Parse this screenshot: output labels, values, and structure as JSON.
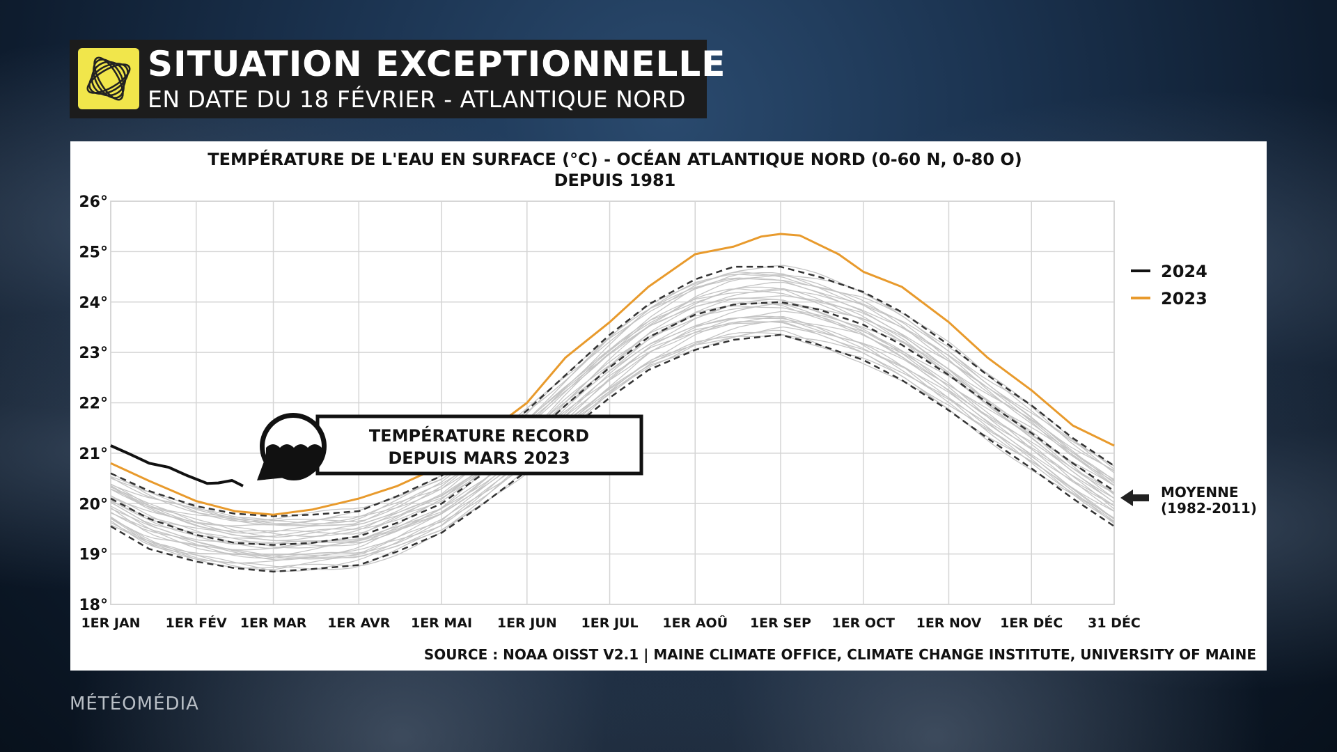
{
  "header": {
    "title": "SITUATION EXCEPTIONNELLE",
    "subtitle": "EN DATE DU 18 FÉVRIER - ATLANTIQUE NORD"
  },
  "brand": "MÉTÉOMÉDIA",
  "colors": {
    "orange": "#e89a2c",
    "black": "#111111",
    "grey": "#bdbdbd",
    "logo": "#f1e64b"
  },
  "icons": {
    "logo": "hurricane-logo-icon",
    "wave": "ocean-wave-icon",
    "arrow": "arrow-left-icon"
  },
  "chart_data": {
    "type": "line",
    "title": "TEMPÉRATURE DE L'EAU EN SURFACE (°C) - OCÉAN ATLANTIQUE NORD (0-60 N, 0-80 O)",
    "subtitle": "DEPUIS 1981",
    "ylim": [
      18,
      26
    ],
    "xlim": [
      1,
      365
    ],
    "y_ticks": [
      "18°",
      "19°",
      "20°",
      "21°",
      "22°",
      "23°",
      "24°",
      "25°",
      "26°"
    ],
    "x_ticks": [
      "1ER JAN",
      "1ER FÉV",
      "1ER MAR",
      "1ER AVR",
      "1ER MAI",
      "1ER JUN",
      "1ER JUL",
      "1ER AOÛ",
      "1ER SEP",
      "1ER OCT",
      "1ER NOV",
      "1ER DÉC",
      "31 DÉC"
    ],
    "x_tick_days": [
      1,
      32,
      60,
      91,
      121,
      152,
      182,
      213,
      244,
      274,
      305,
      335,
      365
    ],
    "grid": true,
    "legend_position": "right",
    "series": [
      {
        "name": "2024",
        "color": "#111111",
        "x": [
          1,
          8,
          15,
          22,
          29,
          36,
          40,
          45,
          49
        ],
        "y": [
          21.15,
          20.98,
          20.8,
          20.72,
          20.55,
          20.4,
          20.41,
          20.46,
          20.35
        ]
      },
      {
        "name": "2023",
        "color": "#e89a2c",
        "x": [
          1,
          15,
          32,
          46,
          60,
          74,
          91,
          105,
          121,
          135,
          152,
          166,
          182,
          196,
          213,
          227,
          237,
          244,
          251,
          265,
          274,
          288,
          305,
          319,
          335,
          350,
          365
        ],
        "y": [
          20.8,
          20.45,
          20.05,
          19.85,
          19.78,
          19.88,
          20.1,
          20.35,
          20.75,
          21.3,
          22.0,
          22.9,
          23.6,
          24.3,
          24.95,
          25.1,
          25.3,
          25.35,
          25.32,
          24.95,
          24.6,
          24.3,
          23.6,
          22.9,
          22.25,
          21.55,
          21.15
        ]
      }
    ],
    "mean_label": "MOYENNE",
    "mean_period": "(1982-2011)",
    "mean": {
      "x": [
        1,
        15,
        32,
        46,
        60,
        74,
        91,
        105,
        121,
        135,
        152,
        166,
        182,
        196,
        213,
        227,
        244,
        258,
        274,
        288,
        305,
        319,
        335,
        350,
        365
      ],
      "y": [
        20.1,
        19.7,
        19.38,
        19.22,
        19.18,
        19.22,
        19.35,
        19.62,
        20.0,
        20.55,
        21.25,
        21.95,
        22.7,
        23.3,
        23.75,
        23.95,
        24.0,
        23.85,
        23.55,
        23.15,
        22.55,
        22.0,
        21.4,
        20.8,
        20.25
      ]
    },
    "upper_band": {
      "x": [
        1,
        15,
        32,
        46,
        60,
        74,
        91,
        105,
        121,
        135,
        152,
        166,
        182,
        196,
        213,
        227,
        244,
        258,
        274,
        288,
        305,
        319,
        335,
        350,
        365
      ],
      "y": [
        20.6,
        20.25,
        19.95,
        19.8,
        19.75,
        19.78,
        19.85,
        20.15,
        20.55,
        21.1,
        21.85,
        22.55,
        23.35,
        23.95,
        24.45,
        24.7,
        24.7,
        24.5,
        24.2,
        23.8,
        23.15,
        22.55,
        21.95,
        21.3,
        20.75
      ]
    },
    "lower_band": {
      "x": [
        1,
        15,
        32,
        46,
        60,
        74,
        91,
        105,
        121,
        135,
        152,
        166,
        182,
        196,
        213,
        227,
        244,
        258,
        274,
        288,
        305,
        319,
        335,
        350,
        365
      ],
      "y": [
        19.55,
        19.1,
        18.85,
        18.72,
        18.65,
        18.7,
        18.78,
        19.05,
        19.42,
        19.95,
        20.65,
        21.4,
        22.1,
        22.65,
        23.05,
        23.25,
        23.35,
        23.15,
        22.85,
        22.45,
        21.85,
        21.3,
        20.7,
        20.1,
        19.55
      ]
    },
    "annotation": {
      "line1": "TEMPÉRATURE RECORD",
      "line2": "DEPUIS MARS 2023"
    },
    "source": "SOURCE : NOAA OISST V2.1 | MAINE CLIMATE OFFICE, CLIMATE CHANGE INSTITUTE, UNIVERSITY OF MAINE"
  }
}
